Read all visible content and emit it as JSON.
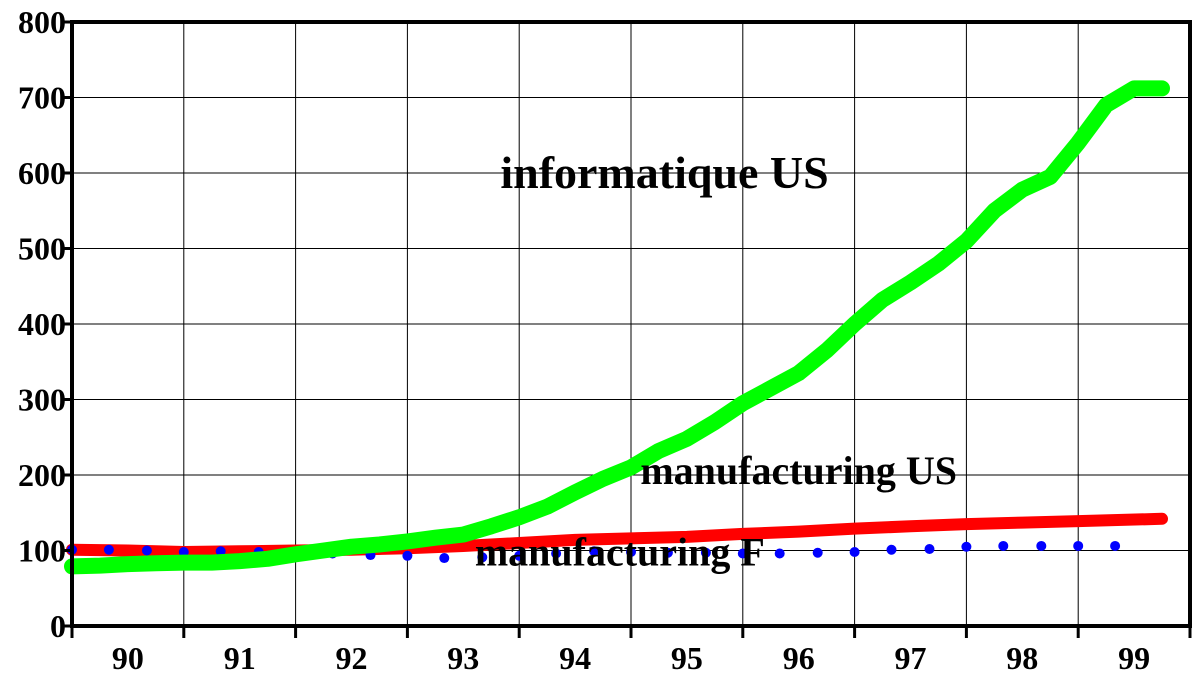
{
  "chart_data": {
    "type": "line",
    "title": "",
    "xlabel": "",
    "ylabel": "",
    "xlim": [
      1990,
      2000
    ],
    "ylim": [
      0,
      800
    ],
    "grid": true,
    "legend": "none",
    "x_tick_labels": [
      "90",
      "91",
      "92",
      "93",
      "94",
      "95",
      "96",
      "97",
      "98",
      "99"
    ],
    "y_tick_labels": [
      "0",
      "100",
      "200",
      "300",
      "400",
      "500",
      "600",
      "700",
      "800"
    ],
    "y_ticks": [
      0,
      100,
      200,
      300,
      400,
      500,
      600,
      700,
      800
    ],
    "series": [
      {
        "name": "informatique US",
        "color": "#00ff00",
        "style": "thick-line",
        "x": [
          1990.0,
          1990.25,
          1990.5,
          1990.75,
          1991.0,
          1991.25,
          1991.5,
          1991.75,
          1992.0,
          1992.25,
          1992.5,
          1992.75,
          1993.0,
          1993.25,
          1993.5,
          1993.75,
          1994.0,
          1994.25,
          1994.5,
          1994.75,
          1995.0,
          1995.25,
          1995.5,
          1995.75,
          1996.0,
          1996.25,
          1996.5,
          1996.75,
          1997.0,
          1997.25,
          1997.5,
          1997.75,
          1998.0,
          1998.25,
          1998.5,
          1998.75,
          1999.0,
          1999.25,
          1999.5,
          1999.75
        ],
        "values": [
          79,
          80,
          82,
          83,
          84,
          84,
          86,
          89,
          95,
          100,
          105,
          108,
          112,
          117,
          121,
          132,
          144,
          158,
          177,
          195,
          210,
          232,
          248,
          270,
          295,
          315,
          335,
          365,
          400,
          432,
          455,
          480,
          510,
          550,
          578,
          595,
          640,
          690,
          712,
          712
        ]
      },
      {
        "name": "manufacturing US",
        "color": "#ff0000",
        "style": "thick-line",
        "x": [
          1990.0,
          1990.5,
          1991.0,
          1991.5,
          1992.0,
          1992.5,
          1993.0,
          1993.5,
          1994.0,
          1994.5,
          1995.0,
          1995.5,
          1996.0,
          1996.5,
          1997.0,
          1997.5,
          1998.0,
          1998.5,
          1999.0,
          1999.75
        ],
        "values": [
          101,
          100,
          98,
          99,
          100,
          101,
          103,
          106,
          110,
          114,
          116,
          118,
          122,
          125,
          129,
          132,
          135,
          137,
          139,
          142
        ]
      },
      {
        "name": "manufacturing F",
        "color": "#0000ff",
        "style": "dots",
        "x": [
          1990.0,
          1990.33,
          1990.67,
          1991.0,
          1991.33,
          1991.67,
          1992.0,
          1992.33,
          1992.67,
          1993.0,
          1993.33,
          1993.67,
          1994.0,
          1994.33,
          1994.67,
          1995.0,
          1995.33,
          1995.67,
          1996.0,
          1996.33,
          1996.67,
          1997.0,
          1997.33,
          1997.67,
          1998.0,
          1998.33,
          1998.67,
          1999.0,
          1999.33
        ],
        "values": [
          101,
          101,
          100,
          98,
          99,
          98,
          97,
          96,
          94,
          93,
          90,
          91,
          93,
          96,
          99,
          98,
          97,
          97,
          96,
          96,
          97,
          98,
          101,
          102,
          105,
          106,
          106,
          106,
          106
        ]
      }
    ],
    "annotations": [
      {
        "text": "informatique US",
        "x": 1995.3,
        "y": 580
      },
      {
        "text": "manufacturing US",
        "x": 1996.5,
        "y": 188
      },
      {
        "text": "manufacturing F",
        "x": 1994.9,
        "y": 80
      }
    ]
  }
}
